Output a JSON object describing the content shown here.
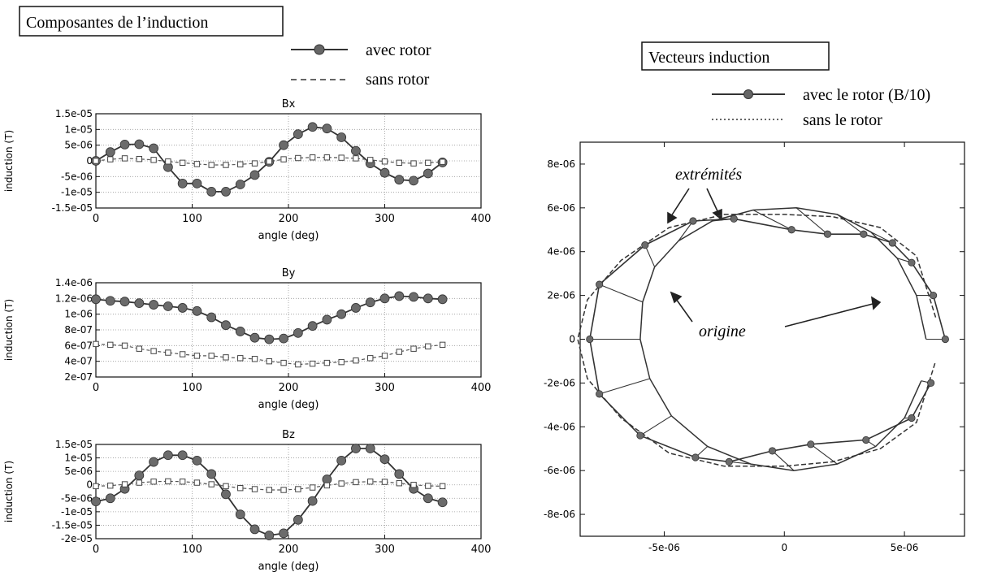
{
  "left_panel": {
    "title": "Composantes de l’induction",
    "legend": {
      "series_a": "avec rotor",
      "series_b": "sans rotor"
    }
  },
  "right_panel": {
    "title": "Vecteurs induction",
    "legend": {
      "series_a": "avec le rotor (B/10)",
      "series_b": "sans le rotor"
    },
    "annotations": {
      "extremites": "extrémités",
      "origine": "origine"
    }
  },
  "chart_data": [
    {
      "type": "line",
      "title": "Bx",
      "xlabel": "angle (deg)",
      "ylabel": "induction (T)",
      "xlim": [
        0,
        400
      ],
      "ylim": [
        -1.5e-05,
        1.5e-05
      ],
      "x_ticks": [
        "0",
        "100",
        "200",
        "300",
        "400"
      ],
      "y_ticks": [
        "1.5e-05",
        "1e-05",
        "5e-06",
        "0",
        "-5e-06",
        "-1e-05",
        "-1.5e-05"
      ],
      "y_tick_values": [
        1.5e-05,
        1e-05,
        5e-06,
        0,
        -5e-06,
        -1e-05,
        -1.5e-05
      ],
      "grid": true,
      "x": [
        0,
        15,
        30,
        45,
        60,
        75,
        90,
        105,
        120,
        135,
        150,
        165,
        180,
        195,
        210,
        225,
        240,
        255,
        270,
        285,
        300,
        315,
        330,
        345,
        360
      ],
      "series": [
        {
          "name": "avec rotor",
          "marker": "filled-circle",
          "line": "solid",
          "values": [
            0,
            2.8e-06,
            5.2e-06,
            5.3e-06,
            4e-06,
            -2e-06,
            -7.2e-06,
            -7.2e-06,
            -9.8e-06,
            -9.8e-06,
            -7.5e-06,
            -4.5e-06,
            -3e-07,
            5e-06,
            8.5e-06,
            1.08e-05,
            1.03e-05,
            7.5e-06,
            3.2e-06,
            -8e-07,
            -3.8e-06,
            -6e-06,
            -6.3e-06,
            -4e-06,
            -5e-07
          ]
        },
        {
          "name": "sans rotor",
          "marker": "open-square",
          "line": "dashed",
          "values": [
            0,
            5e-07,
            8e-07,
            6e-07,
            3e-07,
            -2e-07,
            -6e-07,
            -1e-06,
            -1.3e-06,
            -1.3e-06,
            -1.1e-06,
            -8e-07,
            -2e-07,
            5e-07,
            9e-07,
            1.1e-06,
            1.1e-06,
            1e-06,
            8e-07,
            3e-07,
            -2e-07,
            -6e-07,
            -8e-07,
            -6e-07,
            -3e-07
          ]
        }
      ]
    },
    {
      "type": "line",
      "title": "By",
      "xlabel": "angle (deg)",
      "ylabel": "induction (T)",
      "xlim": [
        0,
        400
      ],
      "ylim": [
        2e-07,
        1.4e-06
      ],
      "x_ticks": [
        "0",
        "100",
        "200",
        "300",
        "400"
      ],
      "y_ticks": [
        "1.4e-06",
        "1.2e-06",
        "1e-06",
        "8e-07",
        "6e-07",
        "4e-07",
        "2e-07"
      ],
      "y_tick_values": [
        1.4e-06,
        1.2e-06,
        1e-06,
        8e-07,
        6e-07,
        4e-07,
        2e-07
      ],
      "grid": true,
      "x": [
        0,
        15,
        30,
        45,
        60,
        75,
        90,
        105,
        120,
        135,
        150,
        165,
        180,
        195,
        210,
        225,
        240,
        255,
        270,
        285,
        300,
        315,
        330,
        345,
        360
      ],
      "series": [
        {
          "name": "avec rotor",
          "marker": "filled-circle",
          "line": "solid",
          "values": [
            1.19e-06,
            1.17e-06,
            1.16e-06,
            1.14e-06,
            1.12e-06,
            1.1e-06,
            1.08e-06,
            1.04e-06,
            9.6e-07,
            8.6e-07,
            7.8e-07,
            7e-07,
            6.8e-07,
            6.9e-07,
            7.6e-07,
            8.5e-07,
            9.3e-07,
            1e-06,
            1.08e-06,
            1.15e-06,
            1.2e-06,
            1.23e-06,
            1.22e-06,
            1.2e-06,
            1.19e-06
          ]
        },
        {
          "name": "sans rotor",
          "marker": "open-square",
          "line": "dashed",
          "values": [
            6.2e-07,
            6.1e-07,
            6e-07,
            5.6e-07,
            5.3e-07,
            5.1e-07,
            4.9e-07,
            4.7e-07,
            4.7e-07,
            4.5e-07,
            4.4e-07,
            4.3e-07,
            4e-07,
            3.8e-07,
            3.6e-07,
            3.7e-07,
            3.8e-07,
            3.9e-07,
            4.1e-07,
            4.4e-07,
            4.7e-07,
            5.2e-07,
            5.6e-07,
            5.9e-07,
            6.1e-07
          ]
        }
      ]
    },
    {
      "type": "line",
      "title": "Bz",
      "xlabel": "angle (deg)",
      "ylabel": "induction (T)",
      "xlim": [
        0,
        400
      ],
      "ylim": [
        -2e-05,
        1.5e-05
      ],
      "x_ticks": [
        "0",
        "100",
        "200",
        "300",
        "400"
      ],
      "y_ticks": [
        "1.5e-05",
        "1e-05",
        "5e-06",
        "0",
        "-5e-06",
        "-1e-05",
        "-1.5e-05",
        "-2e-05"
      ],
      "y_tick_values": [
        1.5e-05,
        1e-05,
        5e-06,
        0,
        -5e-06,
        -1e-05,
        -1.5e-05,
        -2e-05
      ],
      "grid": true,
      "x": [
        0,
        15,
        30,
        45,
        60,
        75,
        90,
        105,
        120,
        135,
        150,
        165,
        180,
        195,
        210,
        225,
        240,
        255,
        270,
        285,
        300,
        315,
        330,
        345,
        360
      ],
      "series": [
        {
          "name": "avec rotor",
          "marker": "filled-circle",
          "line": "solid",
          "values": [
            -6.2e-06,
            -5e-06,
            -1.5e-06,
            3.5e-06,
            8.5e-06,
            1.1e-05,
            1.1e-05,
            9e-06,
            4e-06,
            -3.5e-06,
            -1.1e-05,
            -1.65e-05,
            -1.88e-05,
            -1.8e-05,
            -1.3e-05,
            -6e-06,
            2e-06,
            9e-06,
            1.35e-05,
            1.35e-05,
            9.5e-06,
            4e-06,
            -1.5e-06,
            -5e-06,
            -6.5e-06
          ]
        },
        {
          "name": "sans rotor",
          "marker": "open-square",
          "line": "dashed",
          "values": [
            -5e-07,
            -3e-07,
            2e-07,
            8e-07,
            1.2e-06,
            1.3e-06,
            1.2e-06,
            8e-07,
            2e-07,
            -5e-07,
            -1.2e-06,
            -1.6e-06,
            -1.9e-06,
            -1.9e-06,
            -1.6e-06,
            -1e-06,
            -2e-07,
            5e-07,
            1e-06,
            1.2e-06,
            1.1e-06,
            6e-07,
            0.0,
            -4e-07,
            -5e-07
          ]
        }
      ]
    },
    {
      "type": "line",
      "title": "",
      "xlabel": "",
      "ylabel": "",
      "xlim": [
        -8.5e-06,
        7.5e-06
      ],
      "ylim": [
        -9e-06,
        9e-06
      ],
      "x_ticks": [
        "-5e-06",
        "0",
        "5e-06"
      ],
      "x_tick_values": [
        -5e-06,
        0,
        5e-06
      ],
      "y_ticks": [
        "8e-06",
        "6e-06",
        "4e-06",
        "2e-06",
        "0",
        "-2e-06",
        "-4e-06",
        "-6e-06",
        "-8e-06"
      ],
      "y_tick_values": [
        8e-06,
        6e-06,
        4e-06,
        2e-06,
        0,
        -2e-06,
        -4e-06,
        -6e-06,
        -8e-06
      ],
      "grid": false,
      "series": [
        {
          "name": "avec le rotor (B/10)",
          "line": "solid",
          "marker": "filled-circle",
          "x": [
            6.7e-06,
            6.2e-06,
            5.3e-06,
            4.5e-06,
            3.3e-06,
            1.8e-06,
            3e-07,
            -2.1e-06,
            -3.8e-06,
            -5.8e-06,
            -7.7e-06,
            -8.1e-06,
            -7.7e-06,
            -6e-06,
            -3.7e-06,
            -2.3e-06,
            -5e-07,
            1.1e-06,
            3.4e-06,
            5.3e-06,
            6.1e-06
          ],
          "y": [
            0.0,
            2e-06,
            3.5e-06,
            4.4e-06,
            4.8e-06,
            4.8e-06,
            5e-06,
            5.5e-06,
            5.4e-06,
            4.3e-06,
            2.5e-06,
            0.0,
            -2.5e-06,
            -4.4e-06,
            -5.4e-06,
            -5.6e-06,
            -5.1e-06,
            -4.8e-06,
            -4.6e-06,
            -3.6e-06,
            -2e-06
          ]
        },
        {
          "name": "sans le rotor",
          "line": "dashed",
          "marker": "none",
          "x": [
            6.3e-06,
            5.5e-06,
            4e-06,
            2e-06,
            0.0,
            -2.5e-06,
            -4.8e-06,
            -6.8e-06,
            -8.2e-06,
            -8.6e-06,
            -8.2e-06,
            -6.8e-06,
            -4.8e-06,
            -2.5e-06,
            0.0,
            2e-06,
            4e-06,
            5.5e-06,
            6.3e-06
          ],
          "y": [
            1e-06,
            3.8e-06,
            5.1e-06,
            5.6e-06,
            5.7e-06,
            5.7e-06,
            5.1e-06,
            3.6e-06,
            1.8e-06,
            0.0,
            -1.8e-06,
            -3.6e-06,
            -5.2e-06,
            -5.8e-06,
            -5.8e-06,
            -5.6e-06,
            -5e-06,
            -3.8e-06,
            -1e-06
          ]
        },
        {
          "name": "origine",
          "line": "solid",
          "marker": "none",
          "x": [
            5.9e-06,
            5.5e-06,
            4.7e-06,
            3.6e-06,
            2.2e-06,
            5e-07,
            -1.3e-06,
            -3e-06,
            -4.4e-06,
            -5.4e-06,
            -5.9e-06,
            -6e-06,
            -5.6e-06,
            -4.7e-06,
            -3.2e-06,
            -1.4e-06,
            4e-07,
            2.2e-06,
            3.8e-06,
            5e-06,
            5.7e-06
          ],
          "y": [
            0.0,
            2e-06,
            3.7e-06,
            4.9e-06,
            5.7e-06,
            6e-06,
            5.9e-06,
            5.4e-06,
            4.5e-06,
            3.3e-06,
            1.7e-06,
            0.0,
            -1.8e-06,
            -3.5e-06,
            -4.9e-06,
            -5.7e-06,
            -6e-06,
            -5.7e-06,
            -4.9e-06,
            -3.6e-06,
            -1.9e-06
          ]
        }
      ]
    }
  ]
}
